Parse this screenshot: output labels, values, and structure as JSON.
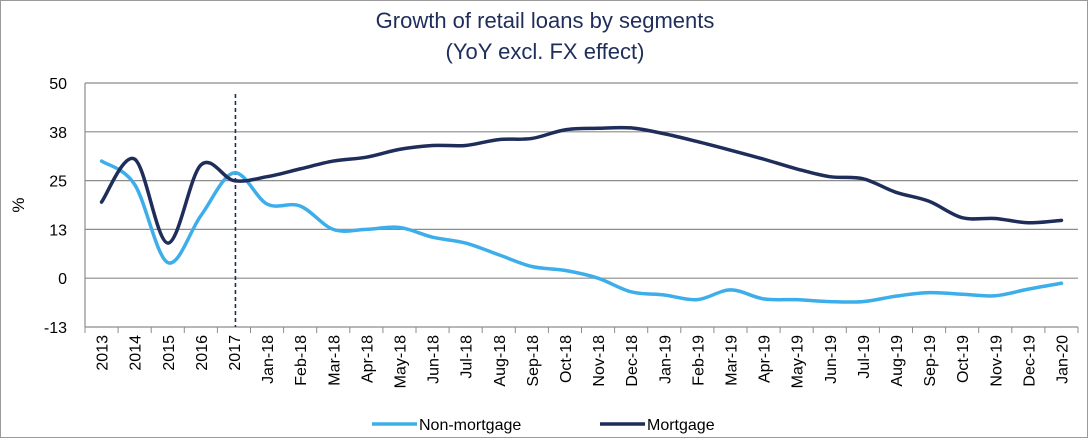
{
  "chart_data": {
    "type": "line",
    "title": "Growth of retail loans by segments",
    "subtitle": "(YoY excl. FX effect)",
    "ylabel": "%",
    "xlabel": "",
    "ylim": [
      -13,
      50
    ],
    "yticks": [
      "50",
      "38",
      "25",
      "13",
      "0",
      "-13"
    ],
    "ytick_values": [
      50,
      37.5,
      25,
      12.5,
      0,
      -12.5
    ],
    "grid": true,
    "legend_position": "bottom",
    "categories": [
      "2013",
      "2014",
      "2015",
      "2016",
      "2017",
      "Jan-18",
      "Feb-18",
      "Mar-18",
      "Apr-18",
      "May-18",
      "Jun-18",
      "Jul-18",
      "Aug-18",
      "Sep-18",
      "Oct-18",
      "Nov-18",
      "Dec-18",
      "Jan-19",
      "Feb-19",
      "Mar-19",
      "Apr-19",
      "May-19",
      "Jun-19",
      "Jul-19",
      "Aug-19",
      "Sep-19",
      "Oct-19",
      "Nov-19",
      "Dec-19",
      "Jan-20"
    ],
    "annotations": [
      {
        "type": "vertical-dashed-line",
        "between": [
          "2017",
          "Jan-18"
        ]
      }
    ],
    "series": [
      {
        "name": "Non-mortgage",
        "color": "#3daee9",
        "values": [
          30,
          24,
          4,
          16,
          27,
          19,
          18.5,
          12.5,
          12.5,
          13,
          10.5,
          9,
          6,
          3,
          2,
          0,
          -3.5,
          -4.3,
          -5.5,
          -3,
          -5.3,
          -5.5,
          -6,
          -6,
          -4.6,
          -3.7,
          -4.1,
          -4.5,
          -2.8,
          -1.3
        ]
      },
      {
        "name": "Mortgage",
        "color": "#1f2d5a",
        "values": [
          19.5,
          30.5,
          9,
          29,
          25,
          26,
          28,
          30,
          31,
          33,
          34,
          34,
          35.5,
          35.8,
          38,
          38.4,
          38.5,
          37,
          35,
          32.8,
          30.5,
          28,
          26,
          25.5,
          22,
          19.7,
          15.5,
          15.3,
          14.2,
          14.8
        ]
      }
    ]
  }
}
